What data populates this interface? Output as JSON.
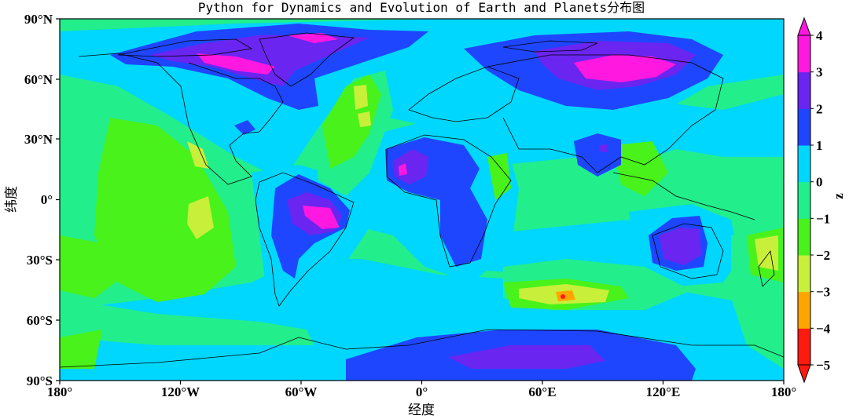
{
  "title": "Python for Dynamics and Evolution of Earth and Planets分布图",
  "xlabel": "经度",
  "ylabel": "纬度",
  "x_ticks": [
    "180°",
    "120°W",
    "60°W",
    "0°",
    "60°E",
    "120°E",
    "180°"
  ],
  "y_ticks": [
    "90°N",
    "60°N",
    "30°N",
    "0°",
    "30°S",
    "60°S",
    "90°S"
  ],
  "colorbar": {
    "label": "z",
    "ticks": [
      "4",
      "3",
      "2",
      "1",
      "0",
      "−1",
      "−2",
      "−3",
      "−4",
      "−5"
    ],
    "levels": [
      -5,
      -4,
      -3,
      -2,
      -1,
      0,
      1,
      2,
      3,
      4
    ],
    "colors": [
      "#ff1a10",
      "#ffa500",
      "#c8f03a",
      "#49f21a",
      "#22ee8c",
      "#00d7ff",
      "#1f46ff",
      "#6a25f0",
      "#ff18e0"
    ]
  },
  "chart_data": {
    "type": "heatmap",
    "title": "Python for Dynamics and Evolution of Earth and Planets分布图",
    "xlabel": "经度",
    "ylabel": "纬度",
    "xlim": [
      -180,
      180
    ],
    "ylim": [
      -90,
      90
    ],
    "z_range": [
      -5,
      4
    ],
    "legend": "colorbar-right"
  }
}
